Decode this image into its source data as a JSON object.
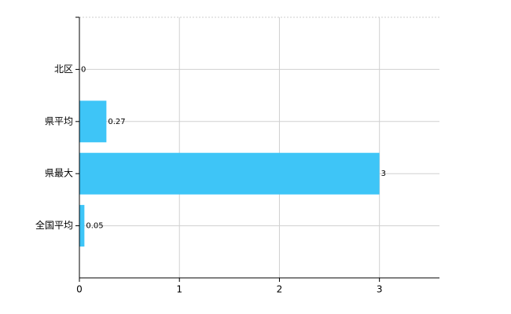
{
  "chart_data": {
    "type": "barh",
    "categories": [
      "北区",
      "県平均",
      "県最大",
      "全国平均"
    ],
    "values": [
      0,
      0.27,
      3,
      0.05
    ],
    "color": "#3ec5f7",
    "xlim": [
      0,
      3.6
    ],
    "xticks": [
      0,
      1,
      2,
      3
    ],
    "grid": true
  }
}
